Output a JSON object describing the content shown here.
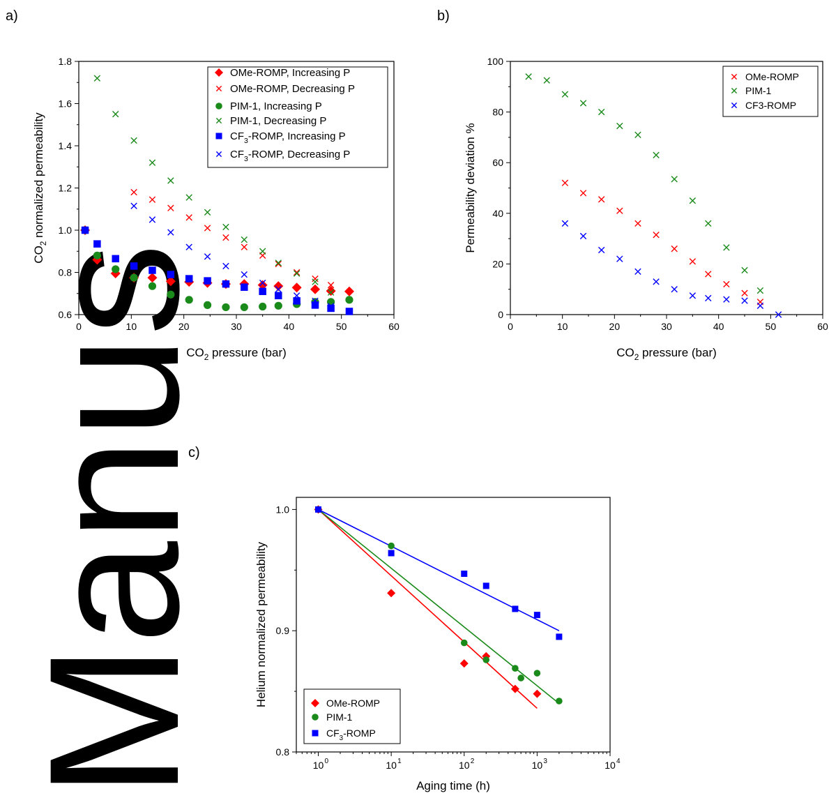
{
  "panels": {
    "a": "a)",
    "b": "b)",
    "c": "c)"
  },
  "watermark": {
    "text": "Manus",
    "color": "#2b2b2b"
  },
  "chart_data": [
    {
      "id": "a",
      "type": "scatter",
      "title": "",
      "xlabel": {
        "pre": "CO",
        "sub": "2",
        "post": " pressure (bar)"
      },
      "ylabel": {
        "pre": "CO",
        "sub": "2",
        "post": " normalized permeability"
      },
      "xlim": [
        0,
        60
      ],
      "ylim": [
        0.6,
        1.8
      ],
      "xticks": [
        0,
        10,
        20,
        30,
        40,
        50,
        60
      ],
      "yticks": [
        0.6,
        0.8,
        1.0,
        1.2,
        1.4,
        1.6,
        1.8
      ],
      "ytick_labels": [
        "0.6",
        "0.8",
        "1.0",
        "1.2",
        "1.4",
        "1.6",
        "1.8"
      ],
      "legend_position": "top-right",
      "series": [
        {
          "name": "OMe-ROMP, Increasing P",
          "sub": "",
          "marker": "diamond",
          "color": "#ff0000",
          "x": [
            1.2,
            3.5,
            7,
            10.5,
            14,
            17.5,
            21,
            24.5,
            28,
            31.5,
            35,
            38,
            41.5,
            45,
            48,
            51.5
          ],
          "y": [
            1.0,
            0.86,
            0.795,
            0.775,
            0.775,
            0.758,
            0.755,
            0.75,
            0.745,
            0.745,
            0.74,
            0.735,
            0.728,
            0.72,
            0.712,
            0.71
          ]
        },
        {
          "name": "OMe-ROMP, Decreasing P",
          "sub": "",
          "marker": "x",
          "color": "#ff0000",
          "x": [
            10.5,
            14,
            17.5,
            21,
            24.5,
            28,
            31.5,
            35,
            38,
            41.5,
            45,
            48
          ],
          "y": [
            1.18,
            1.145,
            1.105,
            1.06,
            1.01,
            0.965,
            0.92,
            0.88,
            0.84,
            0.8,
            0.77,
            0.74
          ]
        },
        {
          "name": "PIM-1, Increasing P",
          "sub": "",
          "marker": "circle",
          "color": "#1a8a1a",
          "x": [
            1.2,
            3.5,
            7,
            10.5,
            14,
            17.5,
            21,
            24.5,
            28,
            31.5,
            35,
            38,
            41.5,
            45,
            48,
            51.5
          ],
          "y": [
            1.0,
            0.88,
            0.815,
            0.775,
            0.735,
            0.695,
            0.67,
            0.645,
            0.635,
            0.635,
            0.638,
            0.642,
            0.65,
            0.66,
            0.66,
            0.67
          ]
        },
        {
          "name": "PIM-1, Decreasing P",
          "sub": "",
          "marker": "x",
          "color": "#1a8a1a",
          "x": [
            3.5,
            7,
            10.5,
            14,
            17.5,
            21,
            24.5,
            28,
            31.5,
            35,
            38,
            41.5,
            45,
            48
          ],
          "y": [
            1.72,
            1.55,
            1.425,
            1.32,
            1.235,
            1.155,
            1.085,
            1.015,
            0.955,
            0.9,
            0.845,
            0.795,
            0.755,
            0.705
          ]
        },
        {
          "name": "-ROMP, Increasing P",
          "sub": "3",
          "prefix": "CF",
          "marker": "square",
          "color": "#0000ff",
          "x": [
            1.2,
            3.5,
            7,
            10.5,
            14,
            17.5,
            21,
            24.5,
            28,
            31.5,
            35,
            38,
            41.5,
            45,
            48,
            51.5
          ],
          "y": [
            1.0,
            0.935,
            0.865,
            0.83,
            0.81,
            0.79,
            0.77,
            0.76,
            0.745,
            0.73,
            0.71,
            0.69,
            0.665,
            0.645,
            0.63,
            0.615
          ]
        },
        {
          "name": "-ROMP, Decreasing P",
          "sub": "3",
          "prefix": "CF",
          "marker": "x",
          "color": "#0000ff",
          "x": [
            10.5,
            14,
            17.5,
            21,
            24.5,
            28,
            31.5,
            35,
            38,
            41.5,
            45,
            48
          ],
          "y": [
            1.115,
            1.05,
            0.99,
            0.92,
            0.875,
            0.83,
            0.79,
            0.75,
            0.72,
            0.69,
            0.665,
            0.64
          ]
        }
      ]
    },
    {
      "id": "b",
      "type": "scatter",
      "title": "",
      "xlabel": {
        "pre": "CO",
        "sub": "2",
        "post": " pressure (bar)"
      },
      "ylabel": {
        "pre": "Permeability deviation %",
        "sub": "",
        "post": ""
      },
      "xlim": [
        0,
        60
      ],
      "ylim": [
        0,
        100
      ],
      "xticks": [
        0,
        10,
        20,
        30,
        40,
        50,
        60
      ],
      "yticks": [
        0,
        20,
        40,
        60,
        80,
        100
      ],
      "ytick_labels": [
        "0",
        "20",
        "40",
        "60",
        "80",
        "100"
      ],
      "legend_position": "top-right",
      "series": [
        {
          "name": "OMe-ROMP",
          "sub": "",
          "marker": "x",
          "color": "#ff0000",
          "x": [
            10.5,
            14,
            17.5,
            21,
            24.5,
            28,
            31.5,
            35,
            38,
            41.5,
            45,
            48
          ],
          "y": [
            52,
            48,
            45.5,
            41,
            36,
            31.5,
            26,
            21,
            16,
            12,
            8.5,
            5
          ]
        },
        {
          "name": "PIM-1",
          "sub": "",
          "marker": "x",
          "color": "#1a8a1a",
          "x": [
            3.5,
            7,
            10.5,
            14,
            17.5,
            21,
            24.5,
            28,
            31.5,
            35,
            38,
            41.5,
            45,
            48
          ],
          "y": [
            94,
            92.5,
            87,
            83.5,
            80,
            74.5,
            71,
            63,
            53.5,
            45,
            36,
            26.5,
            17.5,
            9.5
          ]
        },
        {
          "name": "CF3-ROMP",
          "sub": "",
          "marker": "x",
          "color": "#0000ff",
          "x": [
            10.5,
            14,
            17.5,
            21,
            24.5,
            28,
            31.5,
            35,
            38,
            41.5,
            45,
            48,
            51.5
          ],
          "y": [
            36,
            31,
            25.5,
            22,
            17,
            13,
            10,
            7.5,
            6.5,
            6,
            5.5,
            3.5,
            0
          ]
        }
      ]
    },
    {
      "id": "c",
      "type": "scatter",
      "title": "",
      "xscale": "log",
      "xlabel": {
        "pre": "Aging time (h)",
        "sub": "",
        "post": ""
      },
      "ylabel": {
        "pre": "Helium normalized permeability",
        "sub": "",
        "post": ""
      },
      "xlim": [
        0.5,
        10000
      ],
      "ylim": [
        0.8,
        1.01
      ],
      "xticks": [
        1,
        10,
        100,
        1000,
        10000
      ],
      "xtick_exponents": [
        "0",
        "1",
        "2",
        "3",
        "4"
      ],
      "yticks": [
        0.8,
        0.9,
        1.0
      ],
      "ytick_labels": [
        "0.8",
        "0.9",
        "1.0"
      ],
      "legend_position": "bottom-left",
      "series": [
        {
          "name": "OMe-ROMP",
          "sub": "",
          "marker": "diamond",
          "color": "#ff0000",
          "x": [
            1,
            10,
            100,
            200,
            500,
            1000
          ],
          "y": [
            1.0,
            0.931,
            0.873,
            0.879,
            0.852,
            0.848
          ],
          "fit": {
            "x": [
              1,
              1000
            ],
            "y": [
              1.0,
              0.836
            ]
          }
        },
        {
          "name": "PIM-1",
          "sub": "",
          "marker": "circle",
          "color": "#1a8a1a",
          "x": [
            1,
            10,
            100,
            200,
            500,
            600,
            1000,
            2000
          ],
          "y": [
            1.0,
            0.97,
            0.89,
            0.876,
            0.869,
            0.861,
            0.865,
            0.842
          ],
          "fit": {
            "x": [
              1,
              2000
            ],
            "y": [
              1.0,
              0.84
            ]
          }
        },
        {
          "name": "-ROMP",
          "sub": "3",
          "prefix": "CF",
          "marker": "square",
          "color": "#0000ff",
          "x": [
            1,
            10,
            100,
            200,
            500,
            1000,
            2000
          ],
          "y": [
            1.0,
            0.964,
            0.947,
            0.937,
            0.918,
            0.913,
            0.895
          ],
          "fit": {
            "x": [
              1,
              2000
            ],
            "y": [
              1.0,
              0.9
            ]
          }
        }
      ]
    }
  ]
}
